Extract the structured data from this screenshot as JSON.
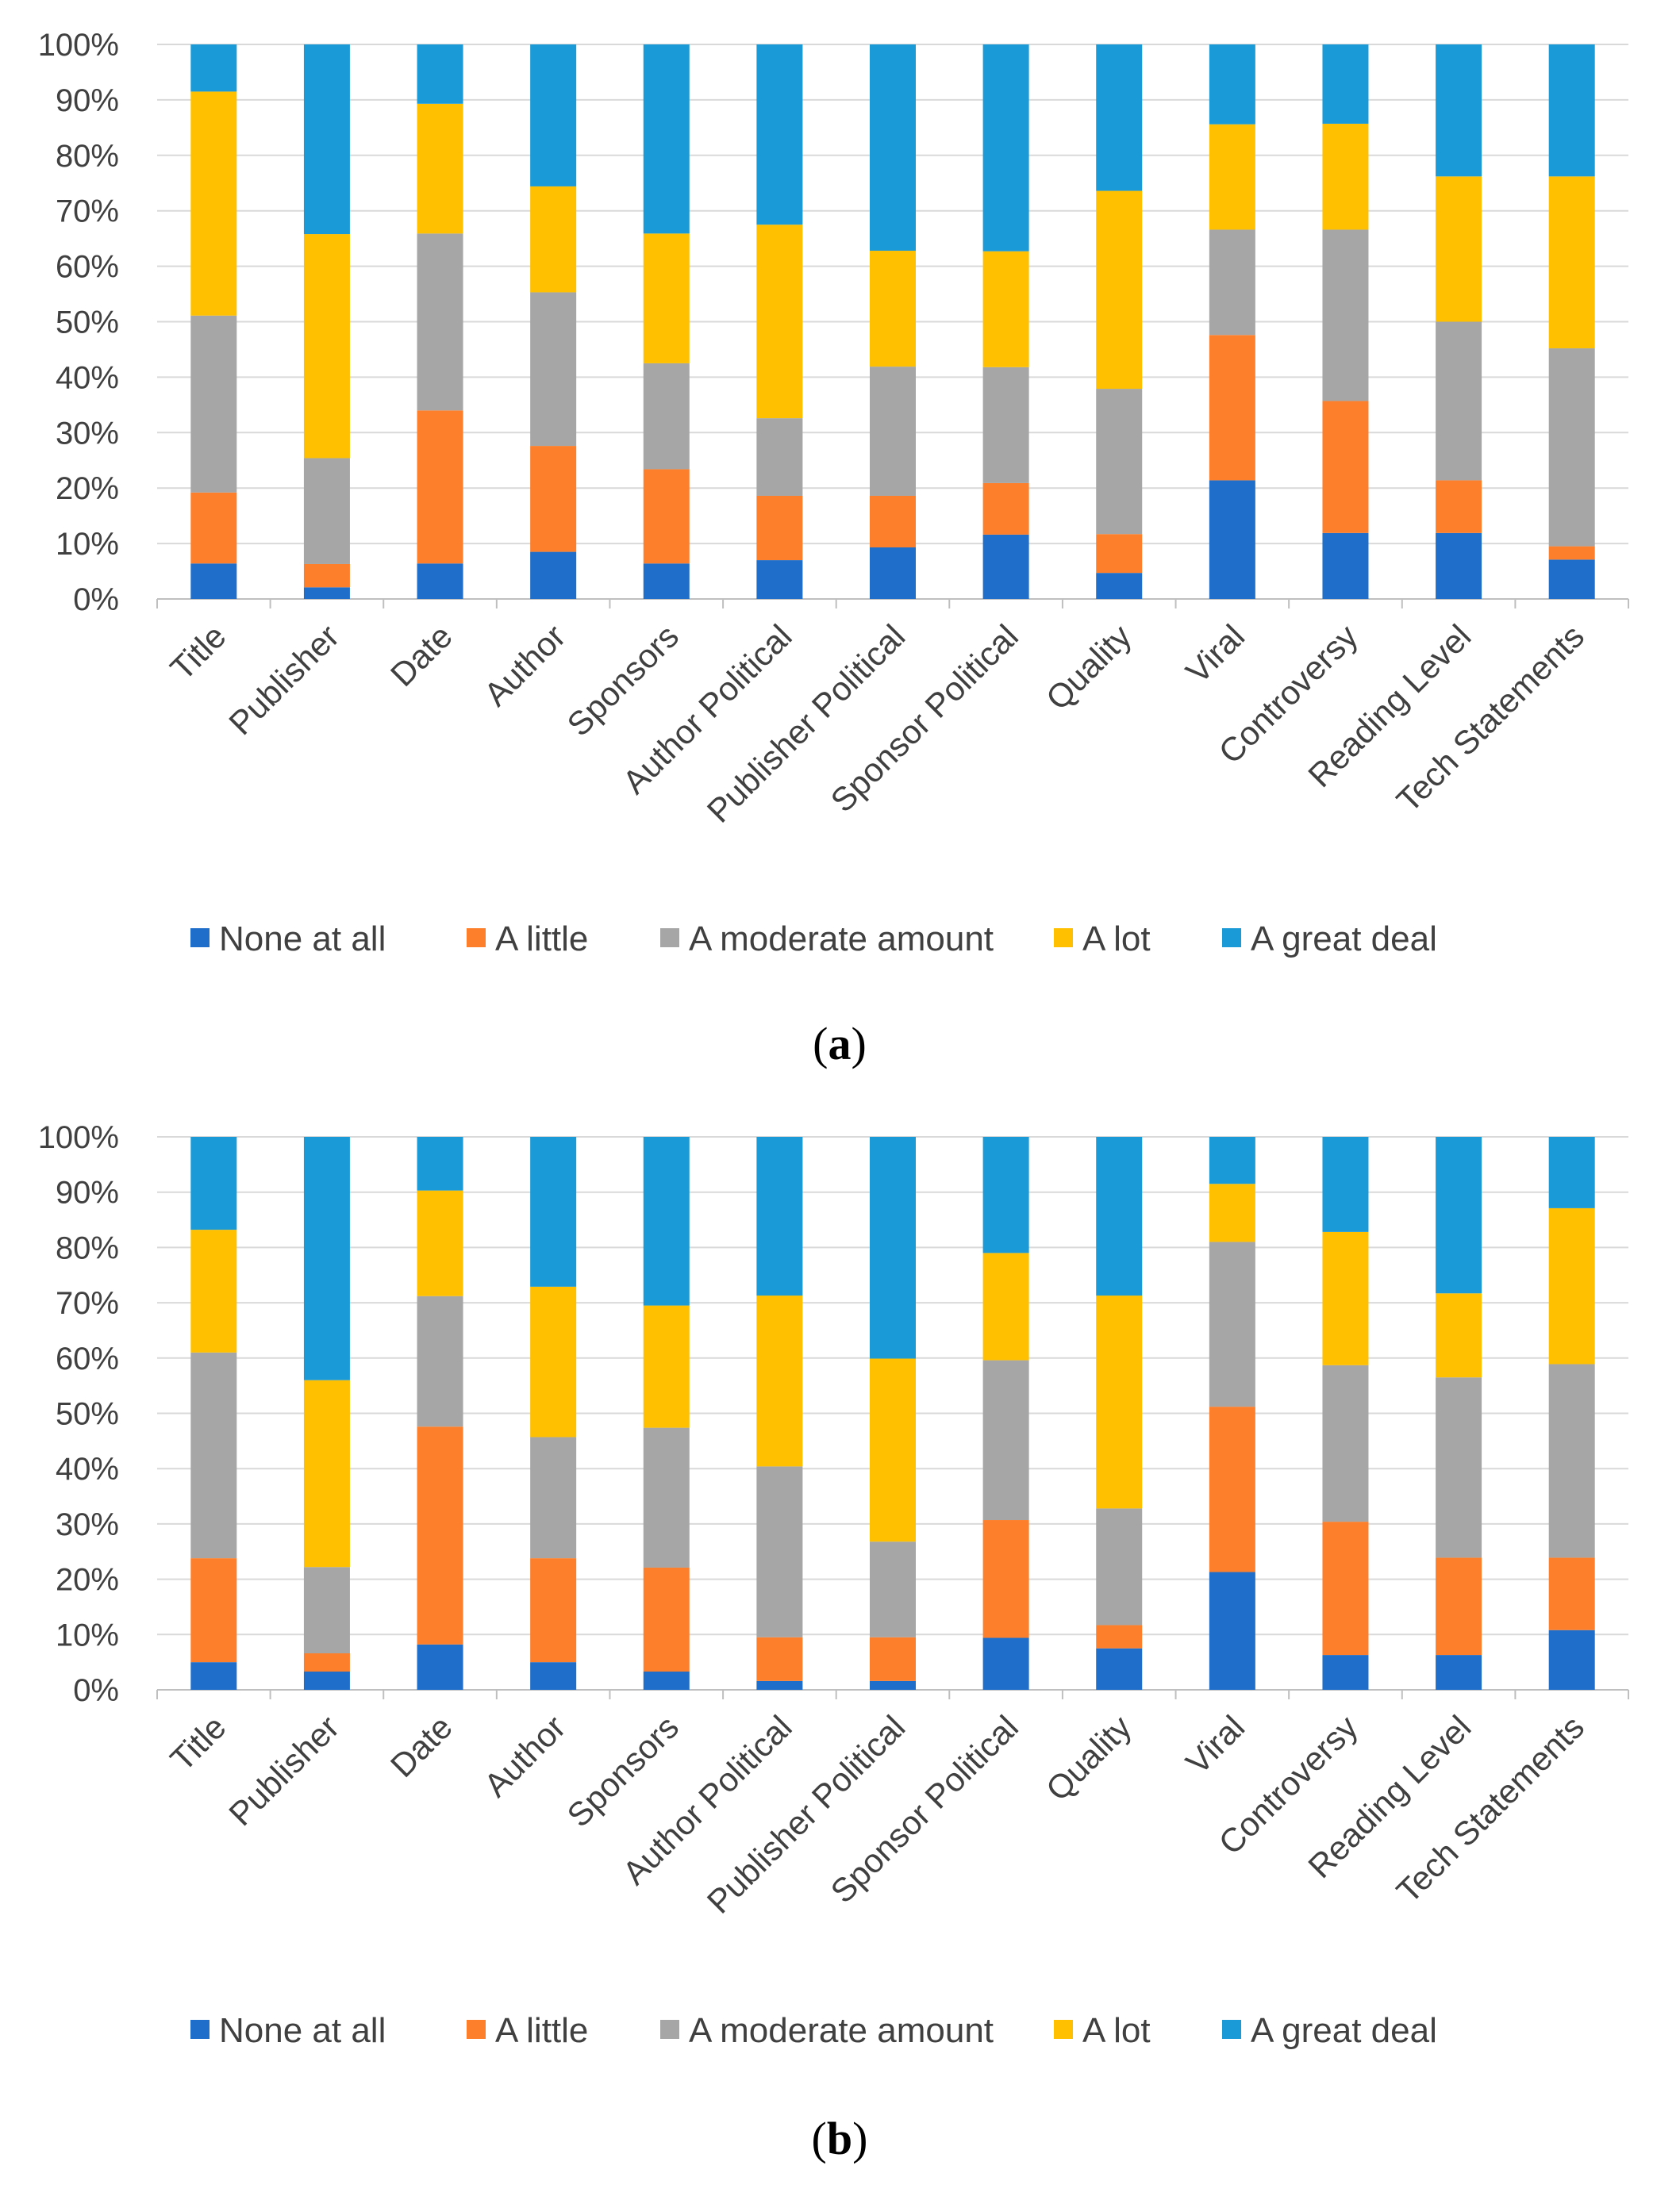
{
  "colors": {
    "None at all": "#1f6fca",
    "A little": "#fd7f2b",
    "A moderate amount": "#a6a6a6",
    "A lot": "#ffc000",
    "A great deal": "#1a9bd8"
  },
  "chart_data": [
    {
      "type": "bar",
      "stacked": true,
      "panel_label": "(a)",
      "panel_open": "(",
      "panel_letter": "a",
      "panel_close": ")",
      "categories": [
        "Title",
        "Publisher",
        "Date",
        "Author",
        "Sponsors",
        "Author Political",
        "Publisher Political",
        "Sponsor Political",
        "Quality",
        "Viral",
        "Controversy",
        "Reading Level",
        "Tech Statements"
      ],
      "series": [
        {
          "name": "None at all",
          "values": [
            6.4,
            2.1,
            6.4,
            8.5,
            6.4,
            7.0,
            9.3,
            11.6,
            4.7,
            21.4,
            11.9,
            11.9,
            7.1
          ]
        },
        {
          "name": "A little",
          "values": [
            12.8,
            4.2,
            27.6,
            19.1,
            17.0,
            11.6,
            9.3,
            9.3,
            7.0,
            26.2,
            23.8,
            9.5,
            2.4
          ]
        },
        {
          "name": "A moderate amount",
          "values": [
            31.9,
            19.1,
            31.9,
            27.7,
            19.1,
            14.0,
            23.3,
            20.9,
            26.2,
            19.0,
            30.9,
            28.6,
            35.7
          ]
        },
        {
          "name": "A lot",
          "values": [
            40.4,
            40.4,
            23.4,
            19.1,
            23.4,
            34.9,
            20.9,
            20.9,
            35.7,
            19.0,
            19.1,
            26.2,
            31.0
          ]
        },
        {
          "name": "A great deal",
          "values": [
            8.5,
            34.2,
            10.7,
            25.6,
            34.1,
            32.5,
            37.2,
            37.3,
            26.4,
            14.4,
            14.3,
            23.8,
            23.8
          ]
        }
      ],
      "yticks": [
        "0%",
        "10%",
        "20%",
        "30%",
        "40%",
        "50%",
        "60%",
        "70%",
        "80%",
        "90%",
        "100%"
      ],
      "ylim": [
        0,
        100
      ],
      "legend": [
        "None at all",
        "A little",
        "A moderate amount",
        "A lot",
        "A great deal"
      ],
      "legend_position": "bottom"
    },
    {
      "type": "bar",
      "stacked": true,
      "panel_label": "(b)",
      "panel_open": "(",
      "panel_letter": "b",
      "panel_close": ")",
      "categories": [
        "Title",
        "Publisher",
        "Date",
        "Author",
        "Sponsors",
        "Author Political",
        "Publisher Political",
        "Sponsor Political",
        "Quality",
        "Viral",
        "Controversy",
        "Reading Level",
        "Tech Statements"
      ],
      "series": [
        {
          "name": "None at all",
          "values": [
            5.0,
            3.3,
            8.2,
            5.0,
            3.3,
            1.6,
            1.6,
            9.4,
            7.5,
            21.3,
            6.3,
            6.3,
            10.8
          ]
        },
        {
          "name": "A little",
          "values": [
            18.8,
            3.3,
            39.4,
            18.8,
            18.8,
            7.9,
            7.9,
            21.3,
            4.2,
            29.9,
            24.1,
            17.6,
            13.1
          ]
        },
        {
          "name": "A moderate amount",
          "values": [
            37.2,
            15.6,
            23.6,
            21.9,
            25.3,
            30.9,
            17.3,
            28.9,
            21.1,
            29.8,
            28.3,
            32.6,
            35.0
          ]
        },
        {
          "name": "A lot",
          "values": [
            22.2,
            33.8,
            19.1,
            27.2,
            22.1,
            30.9,
            33.1,
            19.4,
            38.5,
            10.5,
            24.1,
            15.2,
            28.2
          ]
        },
        {
          "name": "A great deal",
          "values": [
            16.8,
            44.0,
            9.7,
            27.1,
            30.5,
            28.7,
            40.1,
            21.0,
            28.7,
            8.5,
            17.2,
            28.3,
            12.9
          ]
        }
      ],
      "yticks": [
        "0%",
        "10%",
        "20%",
        "30%",
        "40%",
        "50%",
        "60%",
        "70%",
        "80%",
        "90%",
        "100%"
      ],
      "ylim": [
        0,
        100
      ],
      "legend": [
        "None at all",
        "A little",
        "A moderate amount",
        "A lot",
        "A great deal"
      ],
      "legend_position": "bottom"
    }
  ]
}
